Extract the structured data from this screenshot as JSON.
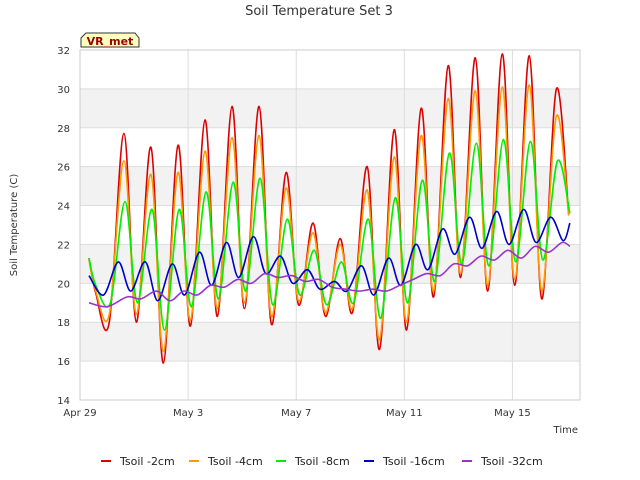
{
  "chart_data": {
    "type": "line",
    "title": "Soil Temperature Set 3",
    "xlabel": "Time",
    "ylabel": "Soil Temperature (C)",
    "badge": "VR_met",
    "xlim": [
      "2024-04-29",
      "2024-05-17T12:00"
    ],
    "ylim": [
      14,
      32
    ],
    "y_ticks": [
      14,
      16,
      18,
      20,
      22,
      24,
      26,
      28,
      30,
      32
    ],
    "x_ticks": [
      {
        "x": "2024-04-29",
        "label": "Apr 29"
      },
      {
        "x": "2024-05-03",
        "label": "May 3"
      },
      {
        "x": "2024-05-07",
        "label": "May 7"
      },
      {
        "x": "2024-05-11",
        "label": "May 11"
      },
      {
        "x": "2024-05-15",
        "label": "May 15"
      }
    ],
    "grid": true,
    "banded_background": true,
    "legend_position": "bottom",
    "series": [
      {
        "name": "Tsoil -2cm",
        "color": "#dd0000",
        "x": [
          "2024-04-29T08:00",
          "2024-04-29T14:00",
          "2024-04-30T02:00",
          "2024-04-30T15:00",
          "2024-05-01T02:00",
          "2024-05-01T15:00",
          "2024-05-02T02:00",
          "2024-05-02T15:00",
          "2024-05-03T02:00",
          "2024-05-03T15:00",
          "2024-05-04T02:00",
          "2024-05-04T15:00",
          "2024-05-05T02:00",
          "2024-05-05T15:00",
          "2024-05-06T02:00",
          "2024-05-06T15:00",
          "2024-05-07T02:00",
          "2024-05-07T15:00",
          "2024-05-08T02:00",
          "2024-05-08T15:00",
          "2024-05-09T02:00",
          "2024-05-09T15:00",
          "2024-05-10T02:00",
          "2024-05-10T15:00",
          "2024-05-11T02:00",
          "2024-05-11T15:00",
          "2024-05-12T02:00",
          "2024-05-12T15:00",
          "2024-05-13T02:00",
          "2024-05-13T15:00",
          "2024-05-14T02:00",
          "2024-05-14T15:00",
          "2024-05-15T02:00",
          "2024-05-15T15:00",
          "2024-05-16T02:00",
          "2024-05-16T15:00",
          "2024-05-17T02:00"
        ],
        "values": [
          21.3,
          19.5,
          18.0,
          27.7,
          18.0,
          27.0,
          15.9,
          27.1,
          17.8,
          28.4,
          18.3,
          29.1,
          18.7,
          29.1,
          17.9,
          25.7,
          18.9,
          23.1,
          18.3,
          22.3,
          18.5,
          26.0,
          16.6,
          27.9,
          17.6,
          29.0,
          19.3,
          31.2,
          20.3,
          31.6,
          19.6,
          31.8,
          19.9,
          31.7,
          19.2,
          30.0,
          23.5
        ]
      },
      {
        "name": "Tsoil -4cm",
        "color": "#ff9900",
        "x": [
          "2024-04-29T08:00",
          "2024-04-29T14:00",
          "2024-04-30T02:00",
          "2024-04-30T15:00",
          "2024-05-01T02:00",
          "2024-05-01T15:00",
          "2024-05-02T02:00",
          "2024-05-02T15:00",
          "2024-05-03T02:00",
          "2024-05-03T15:00",
          "2024-05-04T02:00",
          "2024-05-04T15:00",
          "2024-05-05T02:00",
          "2024-05-05T15:00",
          "2024-05-06T02:00",
          "2024-05-06T15:00",
          "2024-05-07T02:00",
          "2024-05-07T15:00",
          "2024-05-08T02:00",
          "2024-05-08T15:00",
          "2024-05-09T02:00",
          "2024-05-09T15:00",
          "2024-05-10T02:00",
          "2024-05-10T15:00",
          "2024-05-11T02:00",
          "2024-05-11T15:00",
          "2024-05-12T02:00",
          "2024-05-12T15:00",
          "2024-05-13T02:00",
          "2024-05-13T15:00",
          "2024-05-14T02:00",
          "2024-05-14T15:00",
          "2024-05-15T02:00",
          "2024-05-15T15:00",
          "2024-05-16T02:00",
          "2024-05-16T15:00",
          "2024-05-17T02:00"
        ],
        "values": [
          21.2,
          19.6,
          18.4,
          26.3,
          18.4,
          25.6,
          16.5,
          25.7,
          18.1,
          26.8,
          18.7,
          27.5,
          19.0,
          27.6,
          18.3,
          24.9,
          19.1,
          22.6,
          18.5,
          22.0,
          18.7,
          24.8,
          17.1,
          26.5,
          18.0,
          27.6,
          19.6,
          29.5,
          20.5,
          29.9,
          19.9,
          30.1,
          20.2,
          30.2,
          19.6,
          28.6,
          23.5
        ]
      },
      {
        "name": "Tsoil -8cm",
        "color": "#00ee00",
        "x": [
          "2024-04-29T08:00",
          "2024-04-29T14:00",
          "2024-04-30T03:00",
          "2024-04-30T16:00",
          "2024-05-01T03:00",
          "2024-05-01T16:00",
          "2024-05-02T03:00",
          "2024-05-02T16:00",
          "2024-05-03T03:00",
          "2024-05-03T16:00",
          "2024-05-04T03:00",
          "2024-05-04T16:00",
          "2024-05-05T03:00",
          "2024-05-05T16:00",
          "2024-05-06T03:00",
          "2024-05-06T16:00",
          "2024-05-07T03:00",
          "2024-05-07T16:00",
          "2024-05-08T03:00",
          "2024-05-08T16:00",
          "2024-05-09T03:00",
          "2024-05-09T16:00",
          "2024-05-10T03:00",
          "2024-05-10T16:00",
          "2024-05-11T03:00",
          "2024-05-11T16:00",
          "2024-05-12T03:00",
          "2024-05-12T16:00",
          "2024-05-13T03:00",
          "2024-05-13T16:00",
          "2024-05-14T03:00",
          "2024-05-14T16:00",
          "2024-05-15T03:00",
          "2024-05-15T16:00",
          "2024-05-16T03:00",
          "2024-05-16T16:00",
          "2024-05-17T03:00"
        ],
        "values": [
          21.3,
          19.9,
          19.0,
          24.2,
          19.0,
          23.8,
          17.6,
          23.8,
          18.8,
          24.7,
          19.2,
          25.2,
          19.6,
          25.4,
          18.9,
          23.3,
          19.4,
          21.7,
          18.9,
          21.1,
          19.0,
          23.3,
          18.2,
          24.4,
          19.0,
          25.3,
          20.1,
          26.7,
          21.0,
          27.2,
          20.9,
          27.4,
          21.1,
          27.3,
          21.2,
          26.3,
          23.6
        ]
      },
      {
        "name": "Tsoil -16cm",
        "color": "#0000cc",
        "x": [
          "2024-04-29T08:00",
          "2024-04-29T21:00",
          "2024-04-30T10:00",
          "2024-04-30T21:00",
          "2024-05-01T10:00",
          "2024-05-01T21:00",
          "2024-05-02T10:00",
          "2024-05-02T21:00",
          "2024-05-03T10:00",
          "2024-05-03T21:00",
          "2024-05-04T10:00",
          "2024-05-04T21:00",
          "2024-05-05T10:00",
          "2024-05-05T21:00",
          "2024-05-06T10:00",
          "2024-05-06T21:00",
          "2024-05-07T10:00",
          "2024-05-07T21:00",
          "2024-05-08T10:00",
          "2024-05-08T21:00",
          "2024-05-09T10:00",
          "2024-05-09T21:00",
          "2024-05-10T10:00",
          "2024-05-10T21:00",
          "2024-05-11T10:00",
          "2024-05-11T21:00",
          "2024-05-12T10:00",
          "2024-05-12T21:00",
          "2024-05-13T10:00",
          "2024-05-13T21:00",
          "2024-05-14T10:00",
          "2024-05-14T21:00",
          "2024-05-15T10:00",
          "2024-05-15T21:00",
          "2024-05-16T10:00",
          "2024-05-16T21:00",
          "2024-05-17T03:00"
        ],
        "values": [
          20.4,
          19.4,
          21.1,
          19.6,
          21.1,
          19.1,
          21.0,
          19.4,
          21.6,
          19.9,
          22.1,
          20.3,
          22.4,
          20.5,
          21.4,
          20.0,
          20.7,
          19.7,
          20.1,
          19.6,
          20.9,
          19.4,
          21.3,
          19.9,
          22.0,
          20.7,
          22.8,
          21.5,
          23.4,
          21.8,
          23.7,
          22.0,
          23.8,
          22.1,
          23.4,
          22.2,
          23.1
        ]
      },
      {
        "name": "Tsoil -32cm",
        "color": "#9933cc",
        "x": [
          "2024-04-29T08:00",
          "2024-04-30T00:00",
          "2024-04-30T18:00",
          "2024-05-01T06:00",
          "2024-05-01T20:00",
          "2024-05-02T08:00",
          "2024-05-02T20:00",
          "2024-05-03T08:00",
          "2024-05-03T20:00",
          "2024-05-04T08:00",
          "2024-05-04T20:00",
          "2024-05-05T08:00",
          "2024-05-05T20:00",
          "2024-05-06T08:00",
          "2024-05-06T20:00",
          "2024-05-07T08:00",
          "2024-05-07T20:00",
          "2024-05-08T08:00",
          "2024-05-08T20:00",
          "2024-05-09T08:00",
          "2024-05-09T20:00",
          "2024-05-10T08:00",
          "2024-05-10T20:00",
          "2024-05-11T08:00",
          "2024-05-11T20:00",
          "2024-05-12T08:00",
          "2024-05-12T20:00",
          "2024-05-13T08:00",
          "2024-05-13T20:00",
          "2024-05-14T08:00",
          "2024-05-14T20:00",
          "2024-05-15T08:00",
          "2024-05-15T20:00",
          "2024-05-16T08:00",
          "2024-05-16T20:00",
          "2024-05-17T03:00"
        ],
        "values": [
          19.0,
          18.8,
          19.3,
          19.2,
          19.6,
          19.1,
          19.6,
          19.4,
          19.9,
          19.8,
          20.2,
          20.0,
          20.5,
          20.3,
          20.4,
          20.1,
          20.2,
          19.8,
          19.7,
          19.6,
          19.7,
          19.6,
          19.9,
          20.2,
          20.5,
          20.4,
          21.0,
          20.9,
          21.4,
          21.2,
          21.7,
          21.3,
          21.9,
          21.6,
          22.1,
          21.9
        ]
      }
    ]
  }
}
